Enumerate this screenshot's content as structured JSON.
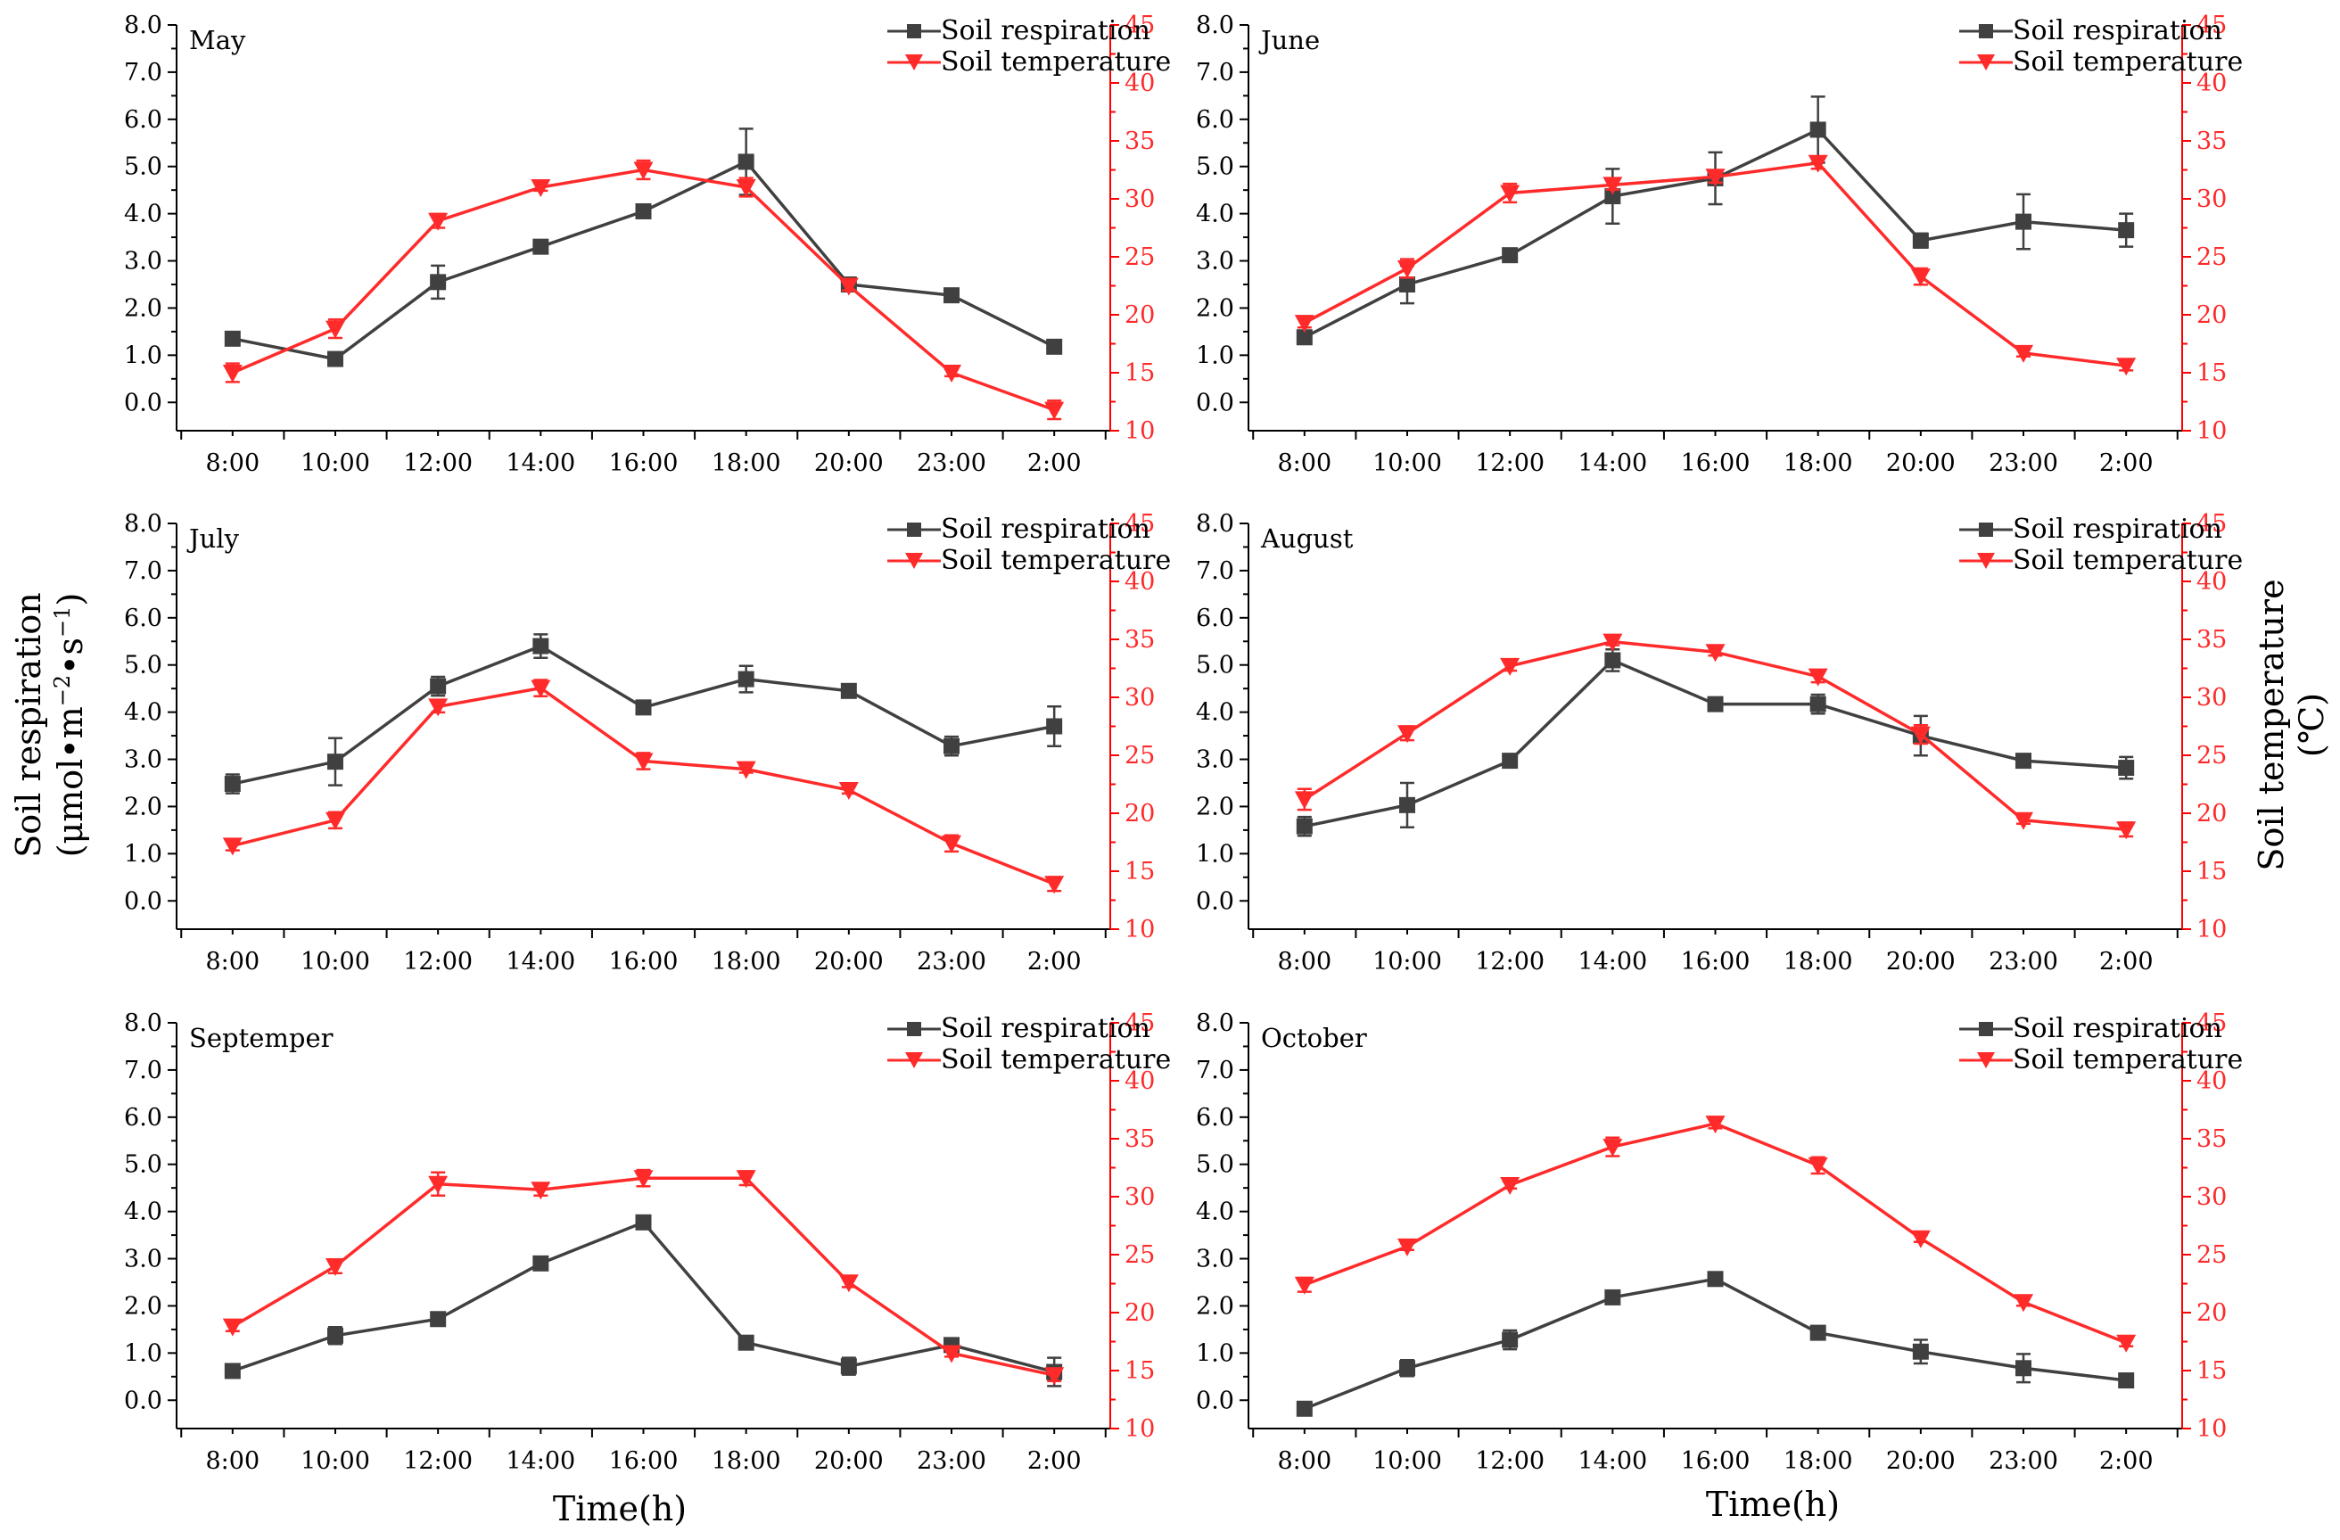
{
  "chart_data": {
    "type": "line",
    "layout": "3x2 grid of dual-axis line charts",
    "categories": [
      "8:00",
      "10:00",
      "12:00",
      "14:00",
      "16:00",
      "18:00",
      "20:00",
      "23:00",
      "2:00"
    ],
    "left_axis": {
      "label_line1": "Soil respiration",
      "label_line2_parts": [
        "(μmol•m",
        "−2",
        "•s",
        "−1",
        ")"
      ],
      "ylim": [
        -0.6,
        8.0
      ],
      "ticks": [
        0.0,
        1.0,
        2.0,
        3.0,
        4.0,
        5.0,
        6.0,
        7.0,
        8.0
      ],
      "tick_labels": [
        "0.0",
        "1.0",
        "2.0",
        "3.0",
        "4.0",
        "5.0",
        "6.0",
        "7.0",
        "8.0"
      ]
    },
    "right_axis": {
      "label_line1": "Soil temperature",
      "label_line2": "(℃)",
      "ylim": [
        10,
        45
      ],
      "ticks": [
        10,
        15,
        20,
        25,
        30,
        35,
        40,
        45
      ],
      "tick_labels": [
        "10",
        "15",
        "20",
        "25",
        "30",
        "35",
        "40",
        "45"
      ],
      "color": "#ff2a2a"
    },
    "xlabel": "Time(h)",
    "legend": [
      "Soil respiration",
      "Soil temperature"
    ],
    "series_colors": {
      "respiration": "#404040",
      "temperature": "#ff2a2a"
    },
    "panels": [
      {
        "month": "May",
        "respiration": [
          1.35,
          0.92,
          2.55,
          3.3,
          4.05,
          5.1,
          2.5,
          2.27,
          1.18
        ],
        "respiration_err": [
          0.08,
          0.05,
          0.35,
          0.12,
          0.06,
          0.7,
          0.1,
          0.06,
          0.1
        ],
        "temperature": [
          15.0,
          18.8,
          28.1,
          31.0,
          32.5,
          31.0,
          22.5,
          15.0,
          11.8
        ],
        "temperature_err": [
          0.8,
          0.8,
          0.6,
          0.3,
          0.8,
          0.8,
          0.4,
          0.3,
          0.8
        ]
      },
      {
        "month": "June",
        "respiration": [
          1.38,
          2.5,
          3.12,
          4.37,
          4.75,
          5.78,
          3.43,
          3.83,
          3.65
        ],
        "respiration_err": [
          0.1,
          0.4,
          0.08,
          0.58,
          0.55,
          0.7,
          0.15,
          0.58,
          0.35
        ],
        "temperature": [
          19.3,
          24.0,
          30.5,
          31.2,
          31.9,
          33.1,
          23.3,
          16.7,
          15.6
        ],
        "temperature_err": [
          0.4,
          0.8,
          0.8,
          0.4,
          0.5,
          0.5,
          0.7,
          0.3,
          0.4
        ]
      },
      {
        "month": "July",
        "respiration": [
          2.48,
          2.95,
          4.55,
          5.4,
          4.1,
          4.7,
          4.45,
          3.28,
          3.7
        ],
        "respiration_err": [
          0.2,
          0.5,
          0.2,
          0.25,
          0.05,
          0.28,
          0.05,
          0.2,
          0.42
        ],
        "temperature": [
          17.2,
          19.4,
          29.2,
          30.8,
          24.5,
          23.8,
          22.0,
          17.4,
          13.9
        ],
        "temperature_err": [
          0.4,
          0.7,
          0.5,
          0.7,
          0.7,
          0.3,
          0.3,
          0.7,
          0.6
        ]
      },
      {
        "month": "August",
        "respiration": [
          1.58,
          2.03,
          2.97,
          5.1,
          4.17,
          4.17,
          3.5,
          2.97,
          2.82
        ],
        "respiration_err": [
          0.2,
          0.47,
          0.05,
          0.23,
          0.05,
          0.2,
          0.42,
          0.05,
          0.23
        ],
        "temperature": [
          21.2,
          26.9,
          32.7,
          34.8,
          33.9,
          31.8,
          26.8,
          19.4,
          18.6
        ],
        "temperature_err": [
          0.9,
          0.6,
          0.4,
          0.3,
          0.3,
          0.5,
          0.8,
          0.3,
          0.6
        ]
      },
      {
        "month": "Septemper",
        "respiration": [
          0.62,
          1.37,
          1.72,
          2.9,
          3.77,
          1.22,
          0.72,
          1.17,
          0.6
        ],
        "respiration_err": [
          0.05,
          0.18,
          0.05,
          0.05,
          0.12,
          0.05,
          0.18,
          0.1,
          0.3
        ],
        "temperature": [
          18.8,
          24.0,
          31.1,
          30.6,
          31.6,
          31.6,
          22.6,
          16.5,
          14.6
        ],
        "temperature_err": [
          0.4,
          0.6,
          1.0,
          0.5,
          0.7,
          0.6,
          0.4,
          0.3,
          0.5
        ]
      },
      {
        "month": "October",
        "respiration": [
          -0.18,
          0.68,
          1.28,
          2.18,
          2.57,
          1.43,
          1.03,
          0.68,
          0.42
        ],
        "respiration_err": [
          0.05,
          0.17,
          0.2,
          0.05,
          0.05,
          0.1,
          0.25,
          0.3,
          0.05
        ],
        "temperature": [
          22.4,
          25.7,
          31.0,
          34.3,
          36.3,
          32.7,
          26.4,
          20.9,
          17.4
        ],
        "temperature_err": [
          0.6,
          0.3,
          0.3,
          0.8,
          0.4,
          0.7,
          0.3,
          0.3,
          0.3
        ]
      }
    ]
  }
}
